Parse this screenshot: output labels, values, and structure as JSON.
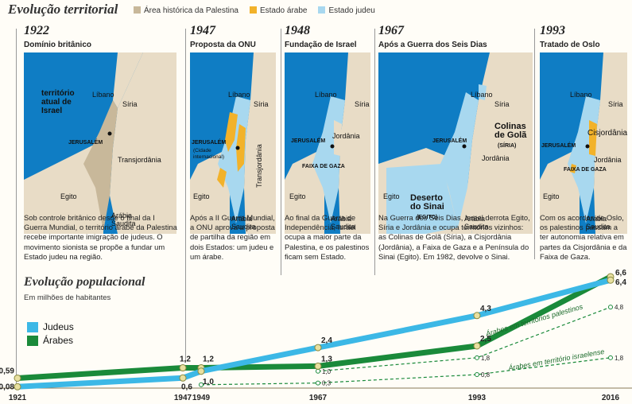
{
  "header": {
    "title": "Evolução territorial",
    "legend": [
      {
        "label": "Área histórica da Palestina",
        "color": "#c8b89a"
      },
      {
        "label": "Estado árabe",
        "color": "#f2b22a"
      },
      {
        "label": "Estado judeu",
        "color": "#a8d8ef"
      }
    ]
  },
  "panels": [
    {
      "year": "1922",
      "subtitle": "Domínio britânico",
      "description": "Sob controle britânico desde o final da I Guerra Mundial, o território árabe da Palestina recebe importante imigração de judeus. O movimento sionista se propõe a fundar um Estado judeu na região.",
      "labels": {
        "israel_note": "território atual de Israel",
        "libano": "Líbano",
        "siria": "Síria",
        "jerusalem": "JERUSALÉM",
        "transjordania": "Transjordânia",
        "egito": "Egito",
        "arabia": "Arábia Saudita"
      }
    },
    {
      "year": "1947",
      "subtitle": "Proposta da ONU",
      "description": "Após a II Guerra Mundial, a ONU aprova a proposta de partilha da região em dois Estados: um judeu e um árabe.",
      "labels": {
        "libano": "Líbano",
        "siria": "Síria",
        "jerusalem": "JERUSALÉM",
        "cidade_int": "(Cidade internacional)",
        "transjordania": "Transjordânia",
        "egito": "Egito",
        "arabia": "Arábia Saudita"
      }
    },
    {
      "year": "1948",
      "subtitle": "Fundação de Israel",
      "description": "Ao final da Guerra de Independência, Israel ocupa a maior parte da Palestina, e os palestinos ficam sem Estado.",
      "labels": {
        "libano": "Líbano",
        "siria": "Síria",
        "jerusalem": "JERUSALÉM",
        "jordania": "Jordânia",
        "gaza": "FAIXA DE GAZA",
        "egito": "Egito",
        "arabia": "Arábia Saudita"
      }
    },
    {
      "year": "1967",
      "subtitle": "Após a Guerra dos Seis Dias",
      "description": "Na Guerra dos Seis Dias, Israel derrota Egito, Síria e Jordânia e ocupa territórios vizinhos: as Colinas de Golã (Síria), a Cisjordânia (Jordânia), a Faixa de Gaza e a Península do Sinai (Egito). Em 1982, devolve o Sinai.",
      "labels": {
        "libano": "Líbano",
        "siria": "Síria",
        "jerusalem": "JERUSALÉM",
        "golan": "Colinas de Golã",
        "golan_note": "(SÍRIA)",
        "jordania": "Jordânia",
        "egito": "Egito",
        "sinai": "Deserto do Sinai",
        "sinai_note": "(EGITO)",
        "arabia": "Arábia Saudita"
      }
    },
    {
      "year": "1993",
      "subtitle": "Tratado de Oslo",
      "description": "Com os acordos de Oslo, os palestinos passam a ter autonomia relativa em partes da Cisjordânia e da Faixa de Gaza.",
      "labels": {
        "libano": "Líbano",
        "siria": "Síria",
        "jerusalem": "JERUSALÉM",
        "cisjordania": "Cisjordânia",
        "gaza": "FAIXA DE GAZA",
        "jordania": "Jordânia",
        "egito": "Egito",
        "arabia": "Arábia Saudita"
      }
    }
  ],
  "population": {
    "title": "Evolução populacional",
    "subtitle": "Em milhões de habitantes"
  },
  "chart_data": {
    "type": "line",
    "title": "Evolução populacional",
    "ylabel": "Em milhões de habitantes",
    "x": [
      "1921",
      "1947",
      "1949",
      "1967",
      "1993",
      "2016"
    ],
    "ylim": [
      0,
      7
    ],
    "series": [
      {
        "name": "Judeus",
        "color": "#3cb8e6",
        "x": [
          "1921",
          "1947",
          "1949",
          "1967",
          "1993",
          "2016"
        ],
        "values": [
          0.08,
          0.6,
          1.0,
          2.4,
          4.3,
          6.4
        ]
      },
      {
        "name": "Árabes",
        "color": "#1a8a3a",
        "x": [
          "1921",
          "1947",
          "1949",
          "1967",
          "1993",
          "2016"
        ],
        "values": [
          0.59,
          1.2,
          1.2,
          1.3,
          2.5,
          6.6
        ]
      },
      {
        "name": "Árabes em territórios palestinos",
        "color": "#1a8a3a",
        "dashed": true,
        "x": [
          "1967",
          "1993",
          "2016"
        ],
        "values": [
          1.0,
          1.8,
          4.8
        ]
      },
      {
        "name": "Árabes em território israelense",
        "color": "#1a8a3a",
        "dashed": true,
        "x": [
          "1949",
          "1967",
          "1993",
          "2016"
        ],
        "values": [
          0.2,
          0.3,
          0.8,
          1.8
        ]
      }
    ],
    "point_labels": {
      "Judeus": [
        "0,08",
        "0,6",
        "1,0",
        "2,4",
        "4,3",
        "6,4"
      ],
      "Árabes": [
        "0,59",
        "1,2",
        "1,2",
        "1,3",
        "2,5",
        "6,6"
      ],
      "Árabes em territórios palestinos": [
        "1,0",
        "1,8",
        "4,8"
      ],
      "Árabes em território israelense": [
        "",
        "0,3",
        "0,8",
        "1,8"
      ]
    },
    "legend": [
      "Judeus",
      "Árabes"
    ]
  }
}
